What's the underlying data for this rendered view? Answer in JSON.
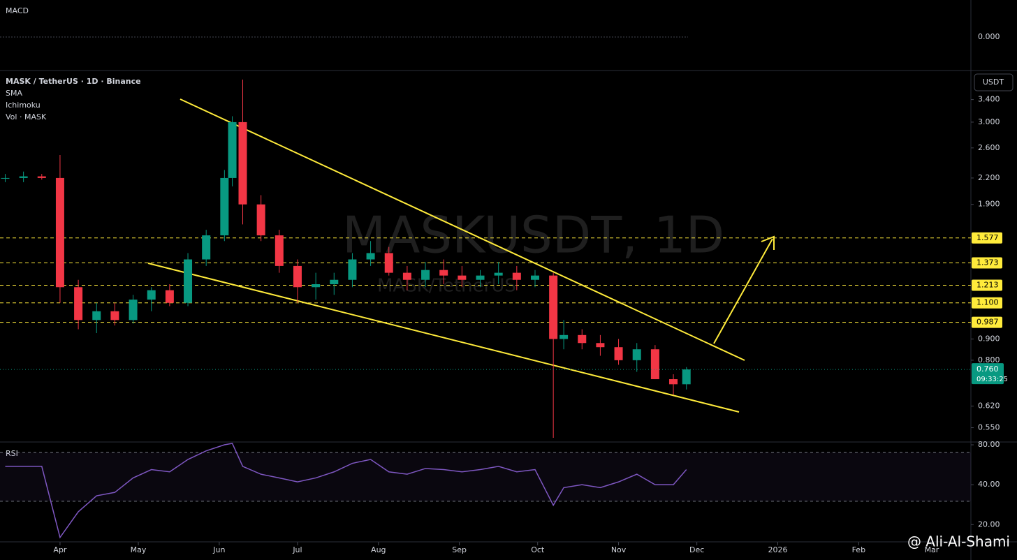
{
  "chart_data": {
    "type": "candlestick",
    "title": "MASK / TetherUS · 1D · Binance",
    "indicators": [
      "SMA",
      "Ichimoku",
      "Vol · MASK"
    ],
    "watermark": "MASKUSDT, 1D",
    "watermark_sub": "MASK/TetherUS",
    "currency": "USDT",
    "x": [
      -21,
      -14,
      -7,
      0,
      7,
      14,
      21,
      28,
      35,
      42,
      49,
      56,
      63,
      66,
      70,
      77,
      84,
      91,
      98,
      105,
      112,
      119,
      126,
      133,
      140,
      147,
      154,
      161,
      168,
      175,
      182,
      189,
      193,
      200,
      207,
      214,
      221,
      228,
      235,
      240
    ],
    "open": [
      2.2,
      2.2,
      2.22,
      2.2,
      1.2,
      1.0,
      1.05,
      1.0,
      1.12,
      1.18,
      1.1,
      1.4,
      1.6,
      2.2,
      3.0,
      1.9,
      1.6,
      1.35,
      1.2,
      1.22,
      1.25,
      1.4,
      1.45,
      1.3,
      1.25,
      1.32,
      1.28,
      1.25,
      1.28,
      1.3,
      1.25,
      1.28,
      0.9,
      0.92,
      0.88,
      0.86,
      0.8,
      0.85,
      0.72,
      0.7
    ],
    "high": [
      2.25,
      2.28,
      2.25,
      2.5,
      1.25,
      1.1,
      1.1,
      1.15,
      1.2,
      1.22,
      1.45,
      1.65,
      2.3,
      3.1,
      3.8,
      2.0,
      1.65,
      1.4,
      1.3,
      1.3,
      1.45,
      1.55,
      1.5,
      1.35,
      1.38,
      1.4,
      1.35,
      1.32,
      1.38,
      1.35,
      1.32,
      1.3,
      1.0,
      0.95,
      0.92,
      0.9,
      0.88,
      0.87,
      0.74,
      0.77
    ],
    "low": [
      2.15,
      2.15,
      2.18,
      1.1,
      0.95,
      0.93,
      0.97,
      0.98,
      1.05,
      1.08,
      1.08,
      1.35,
      1.55,
      2.1,
      1.7,
      1.55,
      1.3,
      1.1,
      1.12,
      1.15,
      1.2,
      1.35,
      1.28,
      1.18,
      1.2,
      1.22,
      1.2,
      1.2,
      1.22,
      1.18,
      1.2,
      0.52,
      0.85,
      0.85,
      0.82,
      0.78,
      0.75,
      0.72,
      0.66,
      0.68
    ],
    "close": [
      2.2,
      2.22,
      2.2,
      1.2,
      1.0,
      1.05,
      1.0,
      1.12,
      1.18,
      1.1,
      1.4,
      1.6,
      2.2,
      3.0,
      1.9,
      1.6,
      1.35,
      1.2,
      1.22,
      1.25,
      1.4,
      1.45,
      1.3,
      1.25,
      1.32,
      1.28,
      1.25,
      1.28,
      1.3,
      1.25,
      1.28,
      0.9,
      0.92,
      0.88,
      0.86,
      0.8,
      0.85,
      0.72,
      0.7,
      0.76
    ],
    "up_color": "#089981",
    "down_color": "#f23645",
    "log_scale": true,
    "ylim": [
      0.51,
      3.98
    ],
    "yticks": [
      {
        "value": 3.4,
        "label": "3.400"
      },
      {
        "value": 3.0,
        "label": "3.000"
      },
      {
        "value": 2.6,
        "label": "2.600"
      },
      {
        "value": 2.2,
        "label": "2.200"
      },
      {
        "value": 1.9,
        "label": "1.900"
      },
      {
        "value": 0.9,
        "label": "0.900"
      },
      {
        "value": 0.8,
        "label": "0.800"
      },
      {
        "value": 0.62,
        "label": "0.620"
      },
      {
        "value": 0.55,
        "label": "0.550"
      }
    ],
    "levels": [
      {
        "value": 1.577,
        "label": "1.577"
      },
      {
        "value": 1.373,
        "label": "1.373"
      },
      {
        "value": 1.213,
        "label": "1.213"
      },
      {
        "value": 1.1,
        "label": "1.100"
      },
      {
        "value": 0.987,
        "label": "0.987"
      }
    ],
    "level_color": "#ffeb3b",
    "last_price": {
      "value": 0.76,
      "label": "0.760"
    },
    "countdown": "09:33:25",
    "xlim": [
      -23,
      349
    ],
    "xticks": [
      {
        "value": 0,
        "label": "Apr"
      },
      {
        "value": 30,
        "label": "May"
      },
      {
        "value": 61,
        "label": "Jun"
      },
      {
        "value": 91,
        "label": "Jul"
      },
      {
        "value": 122,
        "label": "Aug"
      },
      {
        "value": 153,
        "label": "Sep"
      },
      {
        "value": 183,
        "label": "Oct"
      },
      {
        "value": 214,
        "label": "Nov"
      },
      {
        "value": 244,
        "label": "Dec"
      },
      {
        "value": 275,
        "label": "2026"
      },
      {
        "value": 306,
        "label": "Feb"
      },
      {
        "value": 334,
        "label": "Mar"
      }
    ],
    "rsi": {
      "title": "RSI",
      "color": "#7e57c2",
      "log_scale": true,
      "ylim": [
        15,
        83
      ],
      "yticks": [
        {
          "value": 80,
          "label": "80.00"
        },
        {
          "value": 40,
          "label": "40.00"
        },
        {
          "value": 20,
          "label": "20.00"
        }
      ],
      "levels": [
        70,
        30
      ],
      "values": [
        55,
        55,
        55,
        16,
        25,
        33,
        35,
        45,
        52,
        50,
        62,
        72,
        80,
        82,
        55,
        48,
        45,
        42,
        45,
        50,
        58,
        62,
        50,
        48,
        53,
        52,
        50,
        52,
        55,
        50,
        52,
        28,
        38,
        40,
        38,
        42,
        48,
        40,
        40,
        52
      ]
    },
    "macd": {
      "title": "MACD",
      "yticks": [
        {
          "value": 0,
          "label": "0.000"
        }
      ]
    },
    "credit": "@ Ali-Al-Shami"
  }
}
